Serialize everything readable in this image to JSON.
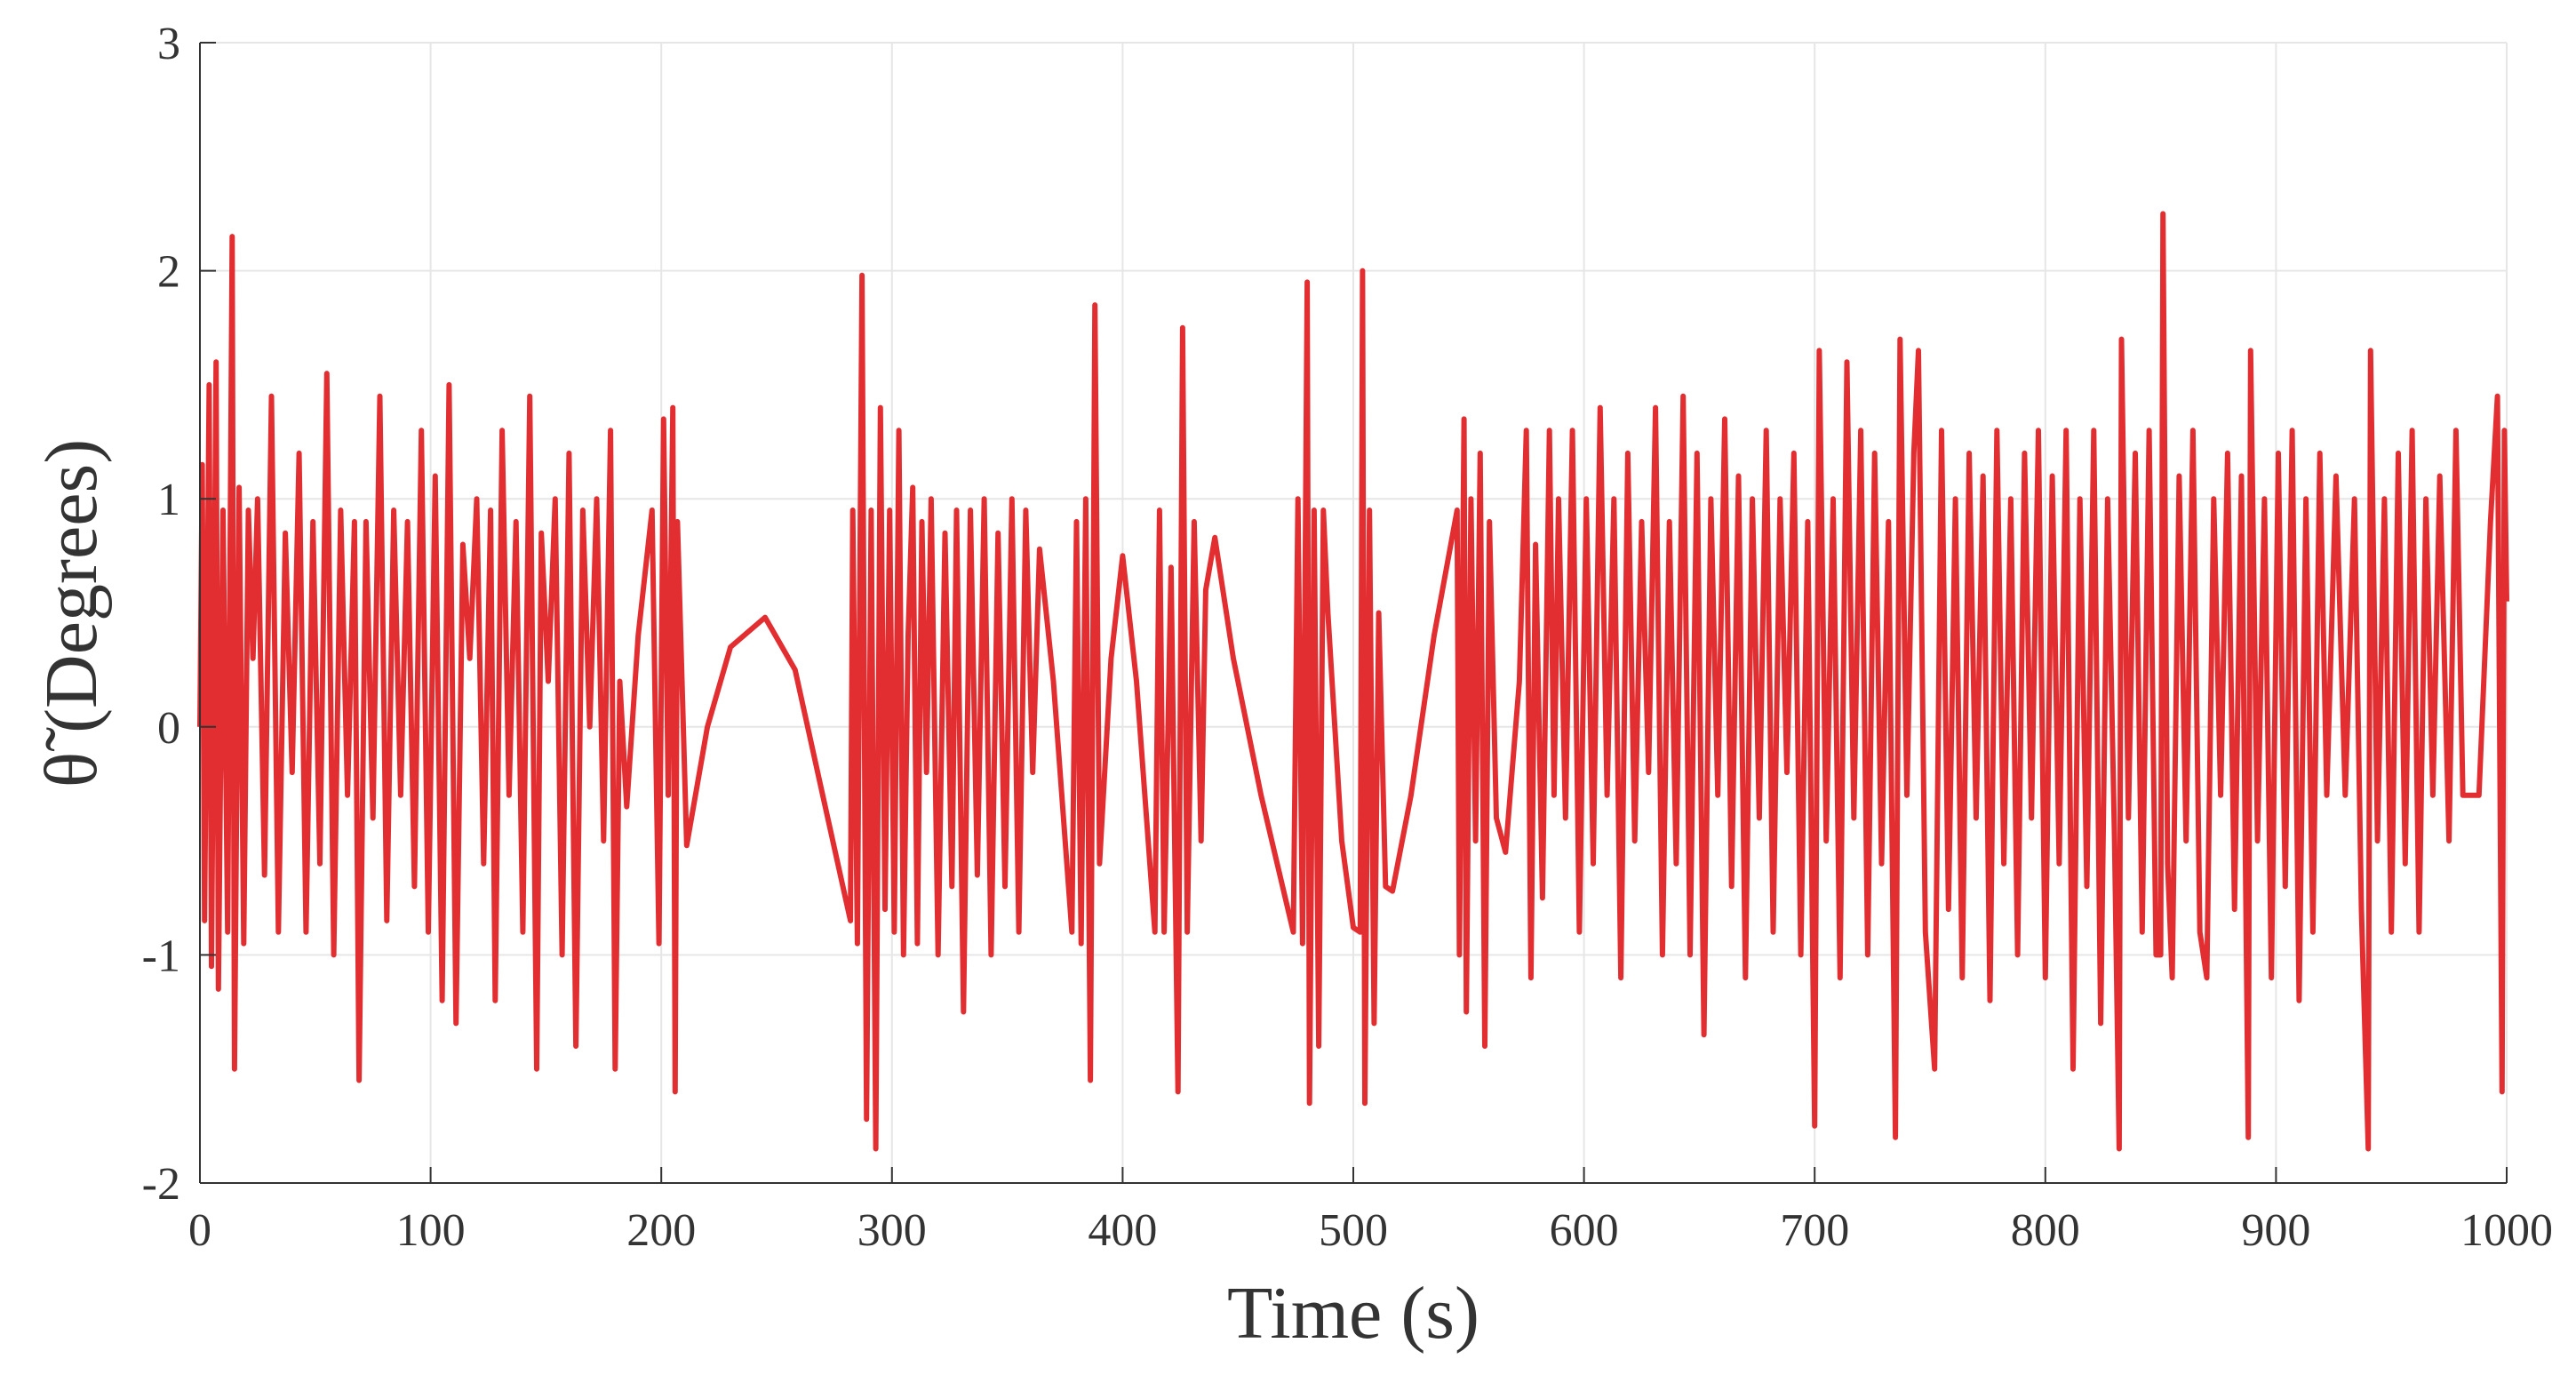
{
  "chart_data": {
    "type": "line",
    "x_label": "Time (s)",
    "y_label": "θ̃ (Degrees)",
    "xlim": [
      0,
      1000
    ],
    "xticks": [
      0,
      100,
      200,
      300,
      400,
      500,
      600,
      700,
      800,
      900,
      1000
    ],
    "ylim": [
      -2,
      3
    ],
    "yticks": [
      -2,
      -1,
      0,
      1,
      2,
      3
    ],
    "grid": true,
    "x": [
      0,
      1,
      2,
      4,
      5,
      7,
      8,
      10,
      12,
      14,
      15,
      17,
      19,
      21,
      23,
      25,
      28,
      31,
      34,
      37,
      40,
      43,
      46,
      49,
      52,
      55,
      58,
      61,
      64,
      67,
      69,
      72,
      75,
      78,
      81,
      84,
      87,
      90,
      93,
      96,
      99,
      102,
      105,
      108,
      111,
      114,
      117,
      120,
      123,
      126,
      128,
      131,
      134,
      137,
      140,
      143,
      146,
      148,
      151,
      154,
      157,
      160,
      163,
      166,
      169,
      172,
      175,
      178,
      180,
      182,
      185,
      190,
      196,
      199,
      201,
      203,
      205,
      206,
      207,
      211,
      220,
      230,
      245,
      258,
      270,
      282,
      283,
      285,
      287,
      289,
      291,
      293,
      295,
      297,
      299,
      301,
      303,
      305,
      307,
      309,
      311,
      313,
      315,
      317,
      320,
      323,
      326,
      328,
      331,
      334,
      337,
      340,
      343,
      346,
      349,
      352,
      355,
      358,
      361,
      364,
      370,
      378,
      380,
      382,
      384,
      386,
      388,
      390,
      395,
      400,
      406,
      414,
      416,
      418,
      421,
      424,
      426,
      428,
      431,
      434,
      436,
      440,
      448,
      460,
      474,
      476,
      478,
      480,
      481,
      483,
      485,
      487,
      489,
      495,
      500,
      503,
      504,
      505,
      507,
      509,
      511,
      514,
      517,
      525,
      535,
      545,
      546,
      548,
      549,
      551,
      553,
      555,
      557,
      559,
      562,
      566,
      572,
      575,
      577,
      579,
      582,
      585,
      587,
      589,
      592,
      595,
      598,
      601,
      604,
      607,
      610,
      613,
      616,
      619,
      622,
      625,
      628,
      631,
      634,
      637,
      640,
      643,
      646,
      649,
      652,
      655,
      658,
      661,
      664,
      667,
      670,
      673,
      676,
      679,
      682,
      685,
      688,
      691,
      694,
      697,
      700,
      702,
      705,
      708,
      711,
      714,
      717,
      720,
      723,
      726,
      729,
      732,
      735,
      737,
      740,
      743,
      745,
      748,
      752,
      755,
      758,
      761,
      764,
      767,
      770,
      773,
      776,
      779,
      782,
      785,
      788,
      791,
      794,
      797,
      800,
      803,
      806,
      809,
      812,
      815,
      818,
      821,
      824,
      827,
      830,
      832,
      833,
      836,
      839,
      842,
      845,
      848,
      850,
      851,
      853,
      855,
      858,
      861,
      864,
      867,
      870,
      873,
      876,
      879,
      882,
      885,
      888,
      889,
      892,
      895,
      898,
      901,
      904,
      907,
      910,
      913,
      916,
      919,
      922,
      926,
      930,
      934,
      937,
      940,
      941,
      944,
      947,
      950,
      953,
      956,
      959,
      962,
      965,
      968,
      971,
      975,
      978,
      981,
      988,
      993,
      996,
      998,
      999,
      1000
    ],
    "series": [
      {
        "name": "theta",
        "color": "#e32e31",
        "values": [
          0,
          1.15,
          -0.85,
          1.5,
          -1.05,
          1.6,
          -1.15,
          0.95,
          -0.9,
          2.15,
          -1.5,
          1.05,
          -0.95,
          0.95,
          0.3,
          1.0,
          -0.65,
          1.45,
          -0.9,
          0.85,
          -0.2,
          1.2,
          -0.9,
          0.9,
          -0.6,
          1.55,
          -1.0,
          0.95,
          -0.3,
          0.9,
          -1.55,
          0.9,
          -0.4,
          1.45,
          -0.85,
          0.95,
          -0.3,
          0.9,
          -0.7,
          1.3,
          -0.9,
          1.1,
          -1.2,
          1.5,
          -1.3,
          0.8,
          0.3,
          1.0,
          -0.6,
          0.95,
          -1.2,
          1.3,
          -0.3,
          0.9,
          -0.9,
          1.45,
          -1.5,
          0.85,
          0.2,
          1.0,
          -1.0,
          1.2,
          -1.4,
          0.95,
          0.0,
          1.0,
          -0.5,
          1.3,
          -1.5,
          0.2,
          -0.35,
          0.4,
          0.95,
          -0.95,
          1.35,
          -0.3,
          1.4,
          -1.6,
          0.9,
          -0.52,
          0.0,
          0.35,
          0.48,
          0.25,
          -0.3,
          -0.85,
          0.95,
          -0.95,
          1.98,
          -1.72,
          0.95,
          -1.85,
          1.4,
          -0.8,
          0.95,
          -0.9,
          1.3,
          -1.0,
          0.4,
          1.05,
          -0.95,
          0.9,
          -0.2,
          1.0,
          -1.0,
          0.85,
          -0.7,
          0.95,
          -1.25,
          0.95,
          -0.65,
          1.0,
          -1.0,
          0.85,
          -0.7,
          1.0,
          -0.9,
          0.95,
          -0.2,
          0.78,
          0.2,
          -0.9,
          0.9,
          -0.95,
          1.0,
          -1.55,
          1.85,
          -0.6,
          0.3,
          0.75,
          0.2,
          -0.9,
          0.95,
          -0.9,
          0.7,
          -1.6,
          1.75,
          -0.9,
          0.9,
          -0.5,
          0.6,
          0.83,
          0.3,
          -0.3,
          -0.9,
          1.0,
          -0.95,
          1.95,
          -1.65,
          0.95,
          -1.4,
          0.95,
          0.5,
          -0.5,
          -0.88,
          -0.9,
          2.0,
          -1.65,
          0.95,
          -1.3,
          0.5,
          -0.7,
          -0.72,
          -0.3,
          0.4,
          0.95,
          -1.0,
          1.35,
          -1.25,
          1.0,
          -0.5,
          1.2,
          -1.4,
          0.9,
          -0.4,
          -0.55,
          0.2,
          1.3,
          -1.1,
          0.8,
          -0.75,
          1.3,
          -0.3,
          1.0,
          -0.4,
          1.3,
          -0.9,
          1.0,
          -0.6,
          1.4,
          -0.3,
          1.0,
          -1.1,
          1.2,
          -0.5,
          0.9,
          -0.2,
          1.4,
          -1.0,
          0.9,
          -0.6,
          1.45,
          -1.0,
          1.2,
          -1.35,
          1.0,
          -0.3,
          1.35,
          -0.7,
          1.1,
          -1.1,
          1.0,
          -0.4,
          1.3,
          -0.9,
          1.0,
          -0.2,
          1.2,
          -1.0,
          0.9,
          -1.75,
          1.65,
          -0.5,
          1.0,
          -1.1,
          1.6,
          -0.4,
          1.3,
          -1.0,
          1.2,
          -0.6,
          0.9,
          -1.8,
          1.7,
          -0.3,
          1.2,
          1.65,
          -0.9,
          -1.5,
          1.3,
          -0.8,
          1.0,
          -1.1,
          1.2,
          -0.4,
          1.1,
          -1.2,
          1.3,
          -0.6,
          1.0,
          -1.0,
          1.2,
          -0.4,
          1.3,
          -1.1,
          1.1,
          -0.6,
          1.3,
          -1.5,
          1.0,
          -0.7,
          1.3,
          -1.3,
          1.0,
          -0.5,
          -1.85,
          1.7,
          -0.4,
          1.2,
          -0.9,
          1.3,
          -1.0,
          -1.0,
          2.25,
          -0.6,
          -1.1,
          1.1,
          -0.5,
          1.3,
          -0.9,
          -1.1,
          1.0,
          -0.3,
          1.2,
          -0.8,
          1.1,
          -1.8,
          1.65,
          -0.5,
          1.0,
          -1.1,
          1.2,
          -0.7,
          1.3,
          -1.2,
          1.0,
          -0.9,
          1.2,
          -0.3,
          1.1,
          -0.3,
          1.0,
          -0.8,
          -1.85,
          1.65,
          -0.5,
          1.0,
          -0.9,
          1.2,
          -0.6,
          1.3,
          -0.9,
          1.0,
          -0.3,
          1.1,
          -0.5,
          1.3,
          -0.3,
          -0.3,
          0.9,
          1.45,
          -1.6,
          1.3,
          0.55
        ]
      }
    ]
  }
}
